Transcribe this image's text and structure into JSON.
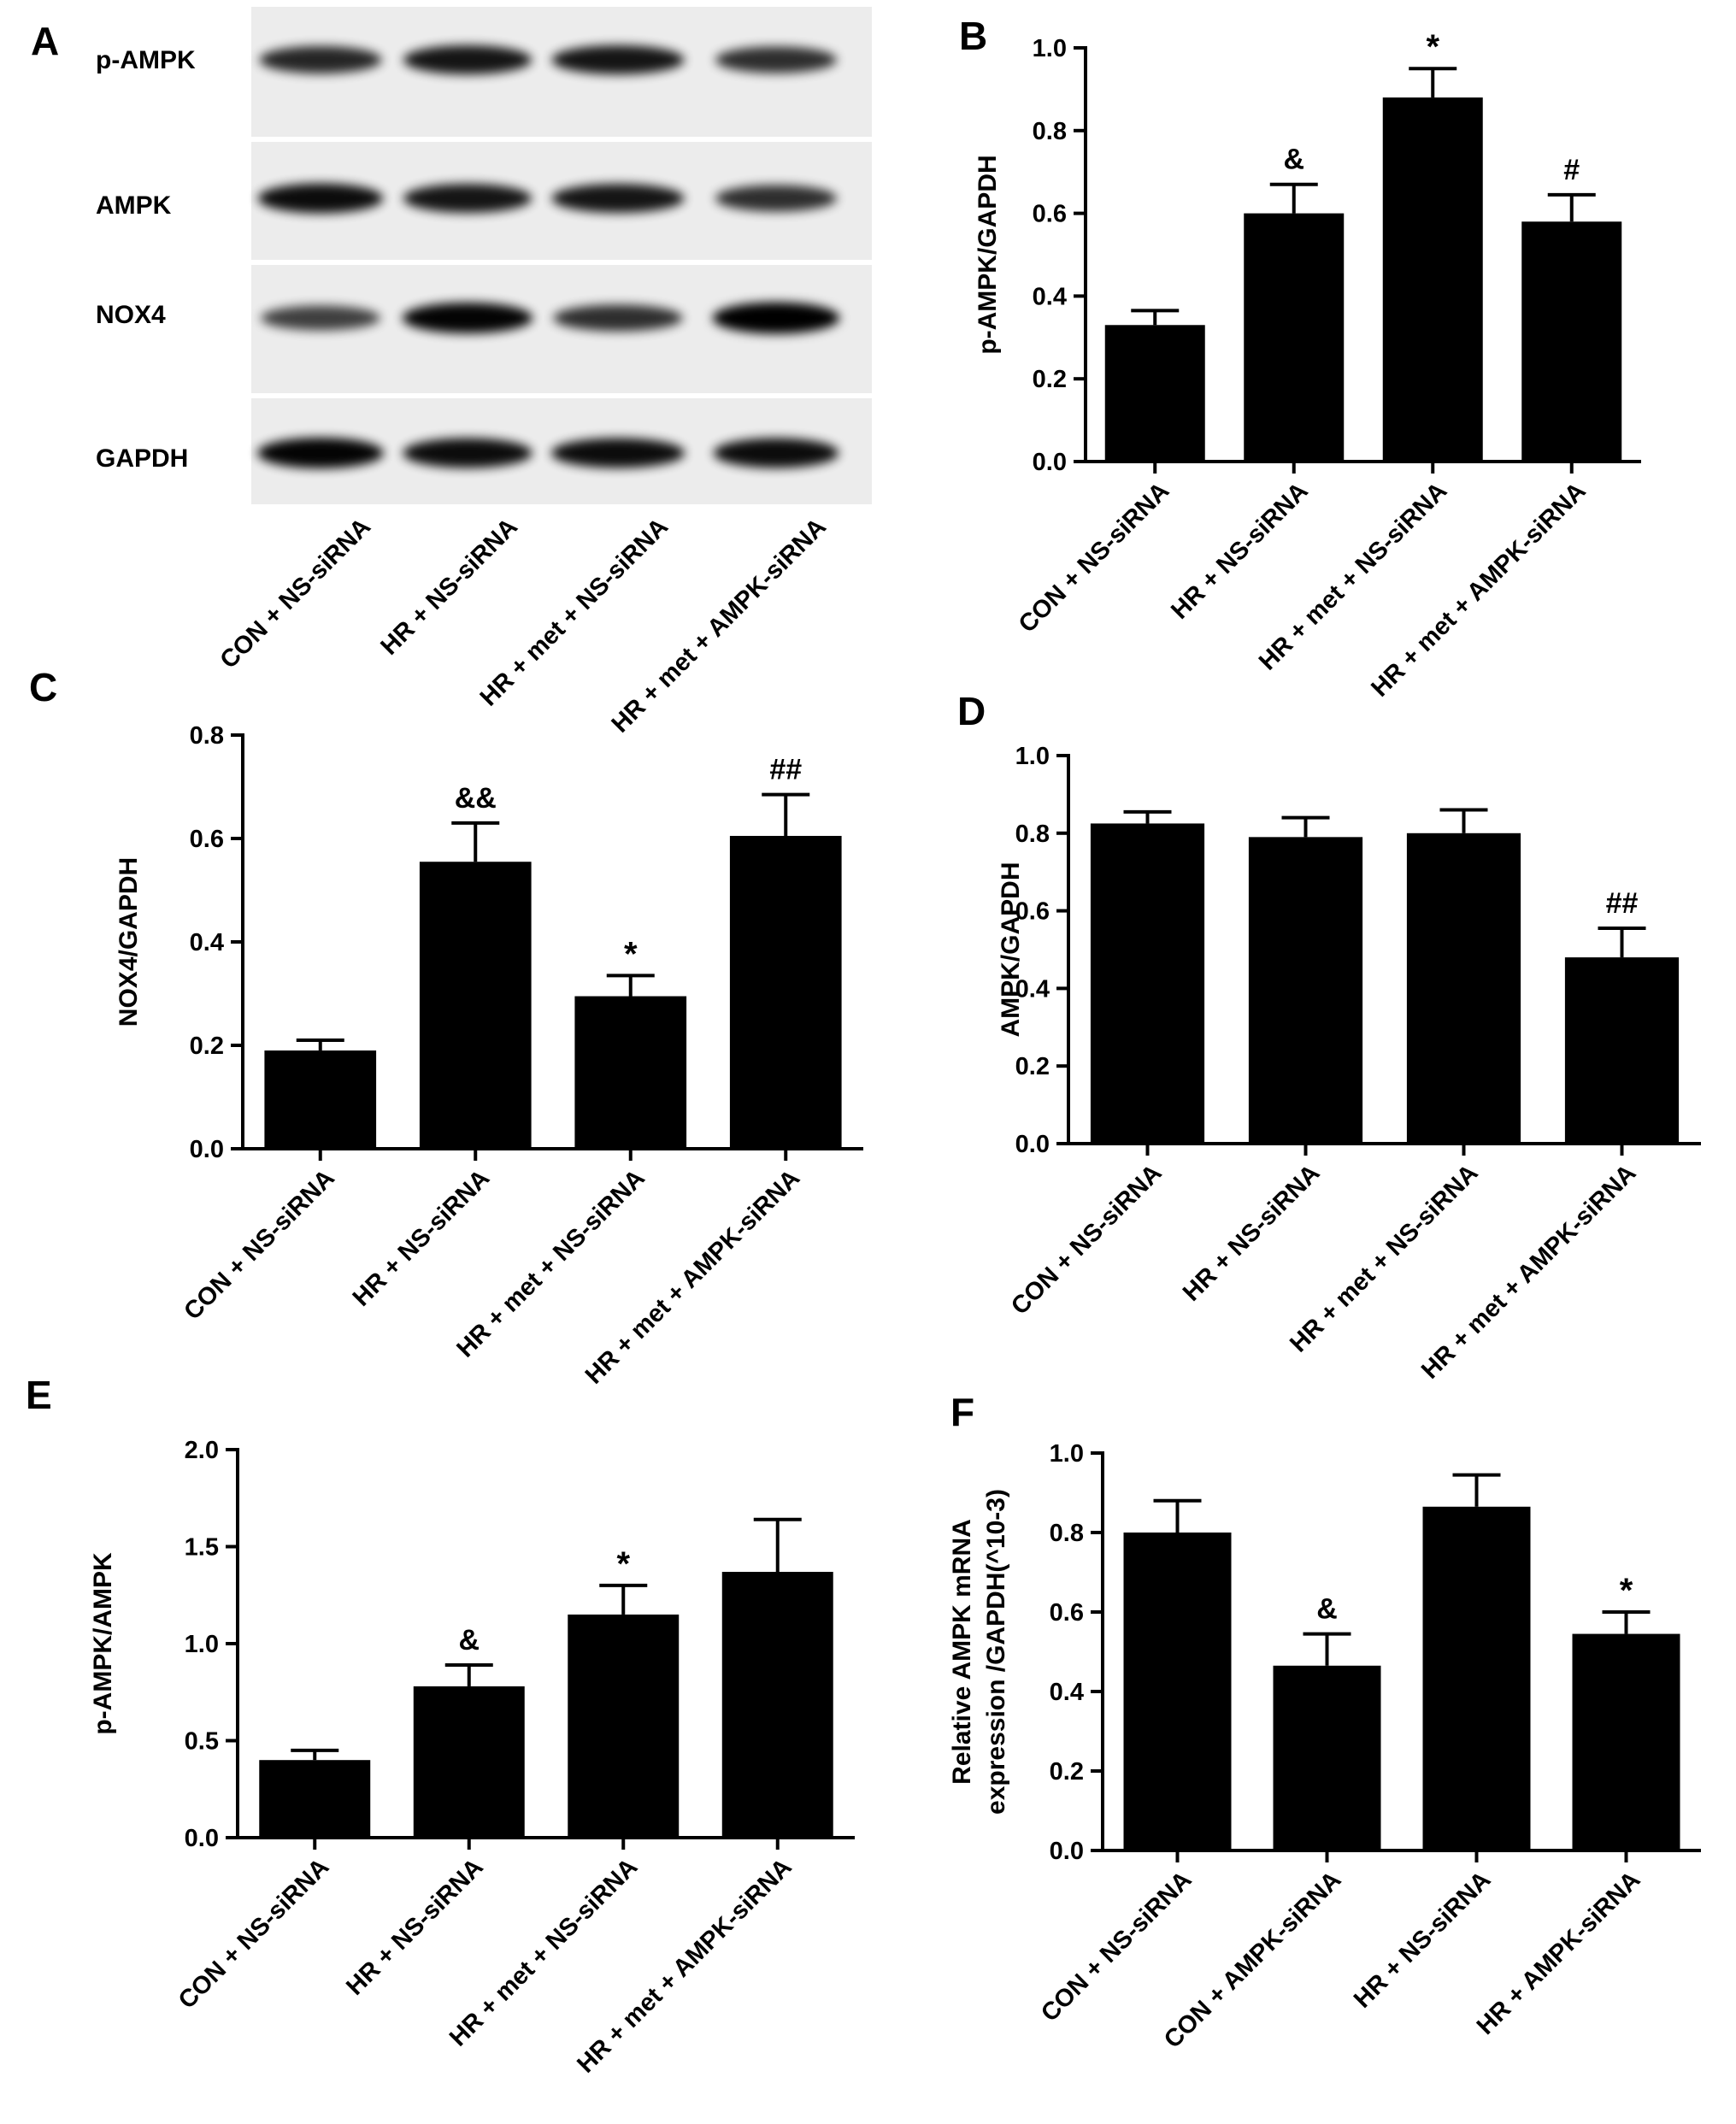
{
  "panel_letters": [
    "A",
    "B",
    "C",
    "D",
    "E",
    "F"
  ],
  "blot": {
    "rows": [
      "p-AMPK",
      "AMPK",
      "NOX4",
      "GAPDH"
    ],
    "lanes": [
      "CON + NS-siRNA",
      "HR + NS-siRNA",
      "HR + met + NS-siRNA",
      "HR + met + AMPK-siRNA"
    ],
    "band_intensity": [
      [
        0.7,
        0.8,
        0.8,
        0.65
      ],
      [
        0.85,
        0.8,
        0.8,
        0.65
      ],
      [
        0.55,
        0.9,
        0.65,
        0.95
      ],
      [
        0.9,
        0.85,
        0.85,
        0.85
      ]
    ]
  },
  "chart_data": [
    {
      "panel": "B",
      "type": "bar",
      "categories": [
        "CON + NS-siRNA",
        "HR + NS-siRNA",
        "HR + met + NS-siRNA",
        "HR + met + AMPK-siRNA"
      ],
      "values": [
        0.33,
        0.6,
        0.88,
        0.58
      ],
      "errors": [
        0.035,
        0.07,
        0.07,
        0.065
      ],
      "annotations": [
        "",
        "&",
        "*",
        "#"
      ],
      "ylabel": [
        "p-AMPK/GAPDH"
      ],
      "ylim": [
        0,
        1.0
      ],
      "yticks": [
        "0.0",
        "0.2",
        "0.4",
        "0.6",
        "0.8",
        "1.0"
      ]
    },
    {
      "panel": "C",
      "type": "bar",
      "categories": [
        "CON + NS-siRNA",
        "HR + NS-siRNA",
        "HR + met + NS-siRNA",
        "HR + met + AMPK-siRNA"
      ],
      "values": [
        0.19,
        0.555,
        0.295,
        0.605
      ],
      "errors": [
        0.02,
        0.075,
        0.04,
        0.08
      ],
      "annotations": [
        "",
        "&&",
        "*",
        "##"
      ],
      "ylabel": [
        "NOX4/GAPDH"
      ],
      "ylim": [
        0,
        0.8
      ],
      "yticks": [
        "0.0",
        "0.2",
        "0.4",
        "0.6",
        "0.8"
      ]
    },
    {
      "panel": "D",
      "type": "bar",
      "categories": [
        "CON + NS-siRNA",
        "HR + NS-siRNA",
        "HR + met + NS-siRNA",
        "HR + met + AMPK-siRNA"
      ],
      "values": [
        0.825,
        0.79,
        0.8,
        0.48
      ],
      "errors": [
        0.03,
        0.05,
        0.06,
        0.075
      ],
      "annotations": [
        "",
        "",
        "",
        "##"
      ],
      "ylabel": [
        "AMPK/GAPDH"
      ],
      "ylim": [
        0,
        1.0
      ],
      "yticks": [
        "0.0",
        "0.2",
        "0.4",
        "0.6",
        "0.8",
        "1.0"
      ]
    },
    {
      "panel": "E",
      "type": "bar",
      "categories": [
        "CON + NS-siRNA",
        "HR + NS-siRNA",
        "HR + met + NS-siRNA",
        "HR + met + AMPK-siRNA"
      ],
      "values": [
        0.4,
        0.78,
        1.15,
        1.37
      ],
      "errors": [
        0.05,
        0.11,
        0.15,
        0.27
      ],
      "annotations": [
        "",
        "&",
        "*",
        ""
      ],
      "ylabel": [
        "p-AMPK/AMPK"
      ],
      "ylim": [
        0,
        2.0
      ],
      "yticks": [
        "0.0",
        "0.5",
        "1.0",
        "1.5",
        "2.0"
      ]
    },
    {
      "panel": "F",
      "type": "bar",
      "categories": [
        "CON + NS-siRNA",
        "CON + AMPK-siRNA",
        "HR + NS-siRNA",
        "HR + AMPK-siRNA"
      ],
      "values": [
        0.8,
        0.465,
        0.865,
        0.545
      ],
      "errors": [
        0.08,
        0.08,
        0.08,
        0.055
      ],
      "annotations": [
        "",
        "&",
        "",
        "*"
      ],
      "ylabel": [
        "Relative  AMPK  mRNA",
        "expression /GAPDH(^10-3)"
      ],
      "ylim": [
        0,
        1.0
      ],
      "yticks": [
        "0.0",
        "0.2",
        "0.4",
        "0.6",
        "0.8",
        "1.0"
      ]
    }
  ]
}
